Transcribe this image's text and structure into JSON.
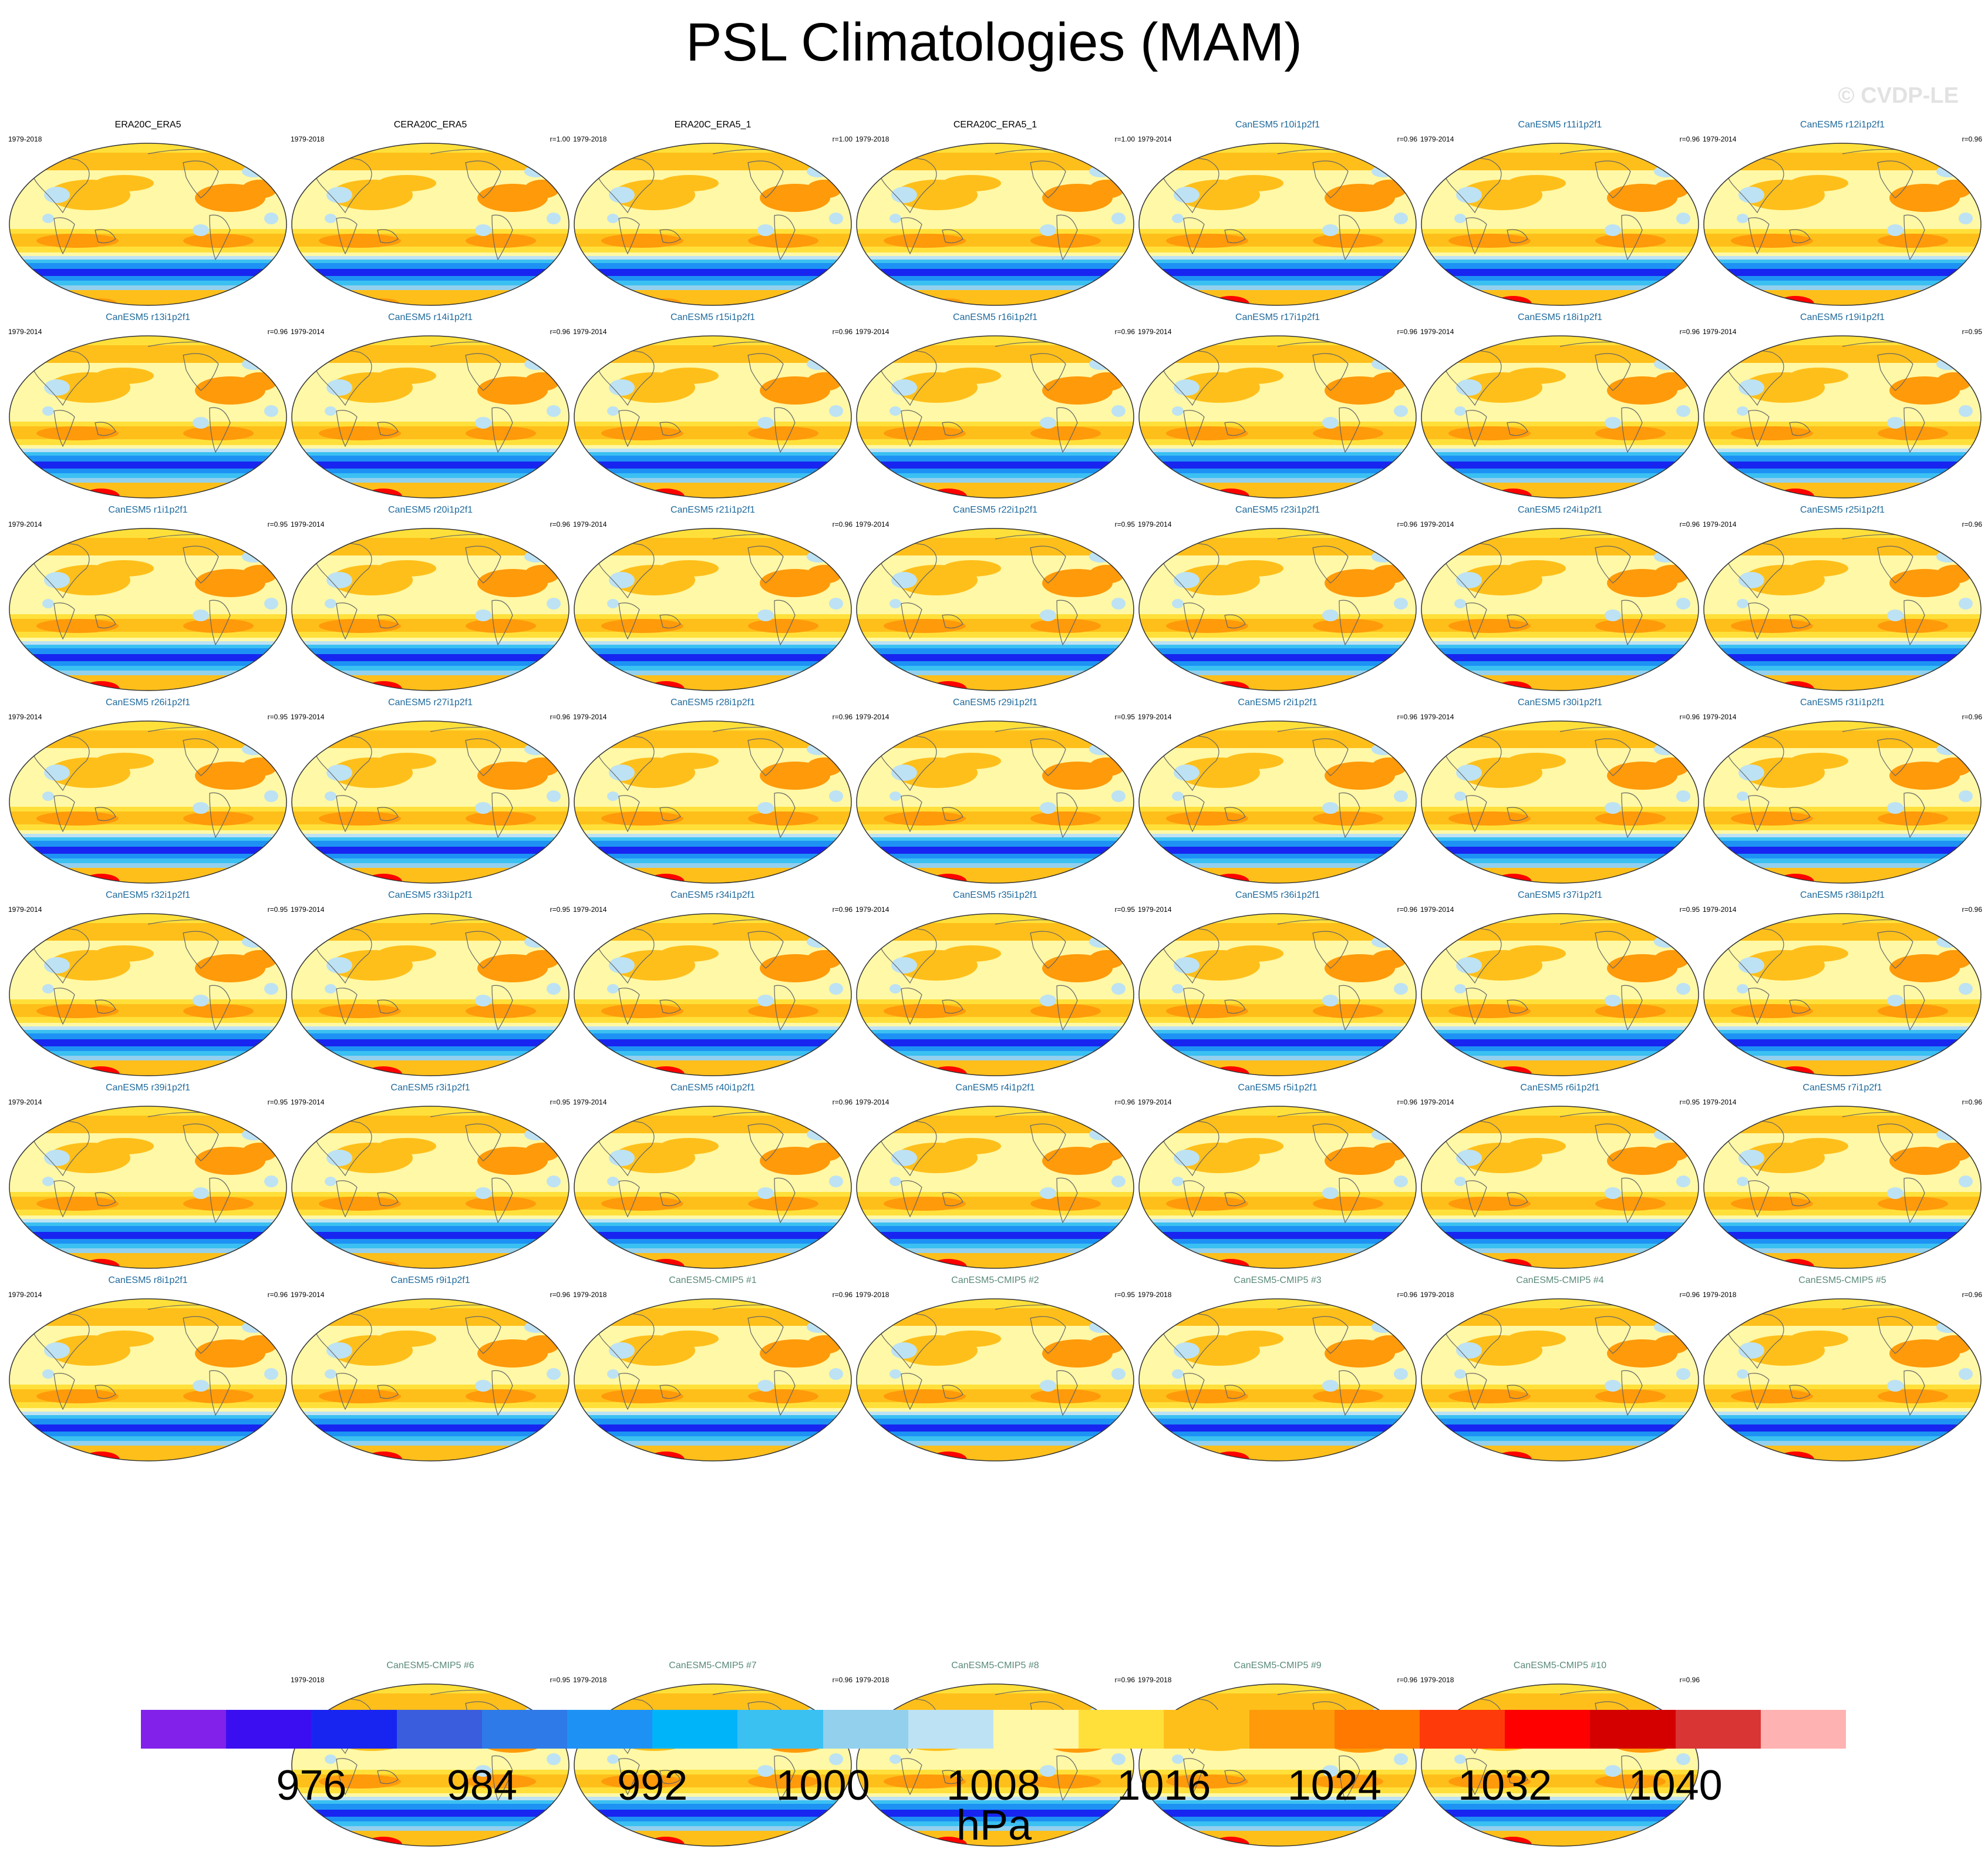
{
  "title": "PSL Climatologies (MAM)",
  "watermark": "© CVDP-LE",
  "colors": {
    "observation_title": "#000000",
    "ensemble_title": "#1f6a9c",
    "cmip5_title": "#5a8a7a"
  },
  "panels": [
    {
      "title": "ERA20C_ERA5",
      "dates": "1979-2018",
      "r": "",
      "kind": "obs"
    },
    {
      "title": "CERA20C_ERA5",
      "dates": "1979-2018",
      "r": "r=1.00",
      "kind": "obs"
    },
    {
      "title": "ERA20C_ERA5_1",
      "dates": "1979-2018",
      "r": "r=1.00",
      "kind": "obs"
    },
    {
      "title": "CERA20C_ERA5_1",
      "dates": "1979-2018",
      "r": "r=1.00",
      "kind": "obs"
    },
    {
      "title": "CanESM5 r10i1p2f1",
      "dates": "1979-2014",
      "r": "r=0.96",
      "kind": "ens"
    },
    {
      "title": "CanESM5 r11i1p2f1",
      "dates": "1979-2014",
      "r": "r=0.96",
      "kind": "ens"
    },
    {
      "title": "CanESM5 r12i1p2f1",
      "dates": "1979-2014",
      "r": "r=0.96",
      "kind": "ens"
    },
    {
      "title": "CanESM5 r13i1p2f1",
      "dates": "1979-2014",
      "r": "r=0.96",
      "kind": "ens"
    },
    {
      "title": "CanESM5 r14i1p2f1",
      "dates": "1979-2014",
      "r": "r=0.96",
      "kind": "ens"
    },
    {
      "title": "CanESM5 r15i1p2f1",
      "dates": "1979-2014",
      "r": "r=0.96",
      "kind": "ens"
    },
    {
      "title": "CanESM5 r16i1p2f1",
      "dates": "1979-2014",
      "r": "r=0.96",
      "kind": "ens"
    },
    {
      "title": "CanESM5 r17i1p2f1",
      "dates": "1979-2014",
      "r": "r=0.96",
      "kind": "ens"
    },
    {
      "title": "CanESM5 r18i1p2f1",
      "dates": "1979-2014",
      "r": "r=0.96",
      "kind": "ens"
    },
    {
      "title": "CanESM5 r19i1p2f1",
      "dates": "1979-2014",
      "r": "r=0.95",
      "kind": "ens"
    },
    {
      "title": "CanESM5 r1i1p2f1",
      "dates": "1979-2014",
      "r": "r=0.95",
      "kind": "ens"
    },
    {
      "title": "CanESM5 r20i1p2f1",
      "dates": "1979-2014",
      "r": "r=0.96",
      "kind": "ens"
    },
    {
      "title": "CanESM5 r21i1p2f1",
      "dates": "1979-2014",
      "r": "r=0.96",
      "kind": "ens"
    },
    {
      "title": "CanESM5 r22i1p2f1",
      "dates": "1979-2014",
      "r": "r=0.95",
      "kind": "ens"
    },
    {
      "title": "CanESM5 r23i1p2f1",
      "dates": "1979-2014",
      "r": "r=0.96",
      "kind": "ens"
    },
    {
      "title": "CanESM5 r24i1p2f1",
      "dates": "1979-2014",
      "r": "r=0.96",
      "kind": "ens"
    },
    {
      "title": "CanESM5 r25i1p2f1",
      "dates": "1979-2014",
      "r": "r=0.96",
      "kind": "ens"
    },
    {
      "title": "CanESM5 r26i1p2f1",
      "dates": "1979-2014",
      "r": "r=0.95",
      "kind": "ens"
    },
    {
      "title": "CanESM5 r27i1p2f1",
      "dates": "1979-2014",
      "r": "r=0.96",
      "kind": "ens"
    },
    {
      "title": "CanESM5 r28i1p2f1",
      "dates": "1979-2014",
      "r": "r=0.96",
      "kind": "ens"
    },
    {
      "title": "CanESM5 r29i1p2f1",
      "dates": "1979-2014",
      "r": "r=0.95",
      "kind": "ens"
    },
    {
      "title": "CanESM5 r2i1p2f1",
      "dates": "1979-2014",
      "r": "r=0.96",
      "kind": "ens"
    },
    {
      "title": "CanESM5 r30i1p2f1",
      "dates": "1979-2014",
      "r": "r=0.96",
      "kind": "ens"
    },
    {
      "title": "CanESM5 r31i1p2f1",
      "dates": "1979-2014",
      "r": "r=0.96",
      "kind": "ens"
    },
    {
      "title": "CanESM5 r32i1p2f1",
      "dates": "1979-2014",
      "r": "r=0.95",
      "kind": "ens"
    },
    {
      "title": "CanESM5 r33i1p2f1",
      "dates": "1979-2014",
      "r": "r=0.95",
      "kind": "ens"
    },
    {
      "title": "CanESM5 r34i1p2f1",
      "dates": "1979-2014",
      "r": "r=0.96",
      "kind": "ens"
    },
    {
      "title": "CanESM5 r35i1p2f1",
      "dates": "1979-2014",
      "r": "r=0.95",
      "kind": "ens"
    },
    {
      "title": "CanESM5 r36i1p2f1",
      "dates": "1979-2014",
      "r": "r=0.96",
      "kind": "ens"
    },
    {
      "title": "CanESM5 r37i1p2f1",
      "dates": "1979-2014",
      "r": "r=0.95",
      "kind": "ens"
    },
    {
      "title": "CanESM5 r38i1p2f1",
      "dates": "1979-2014",
      "r": "r=0.96",
      "kind": "ens"
    },
    {
      "title": "CanESM5 r39i1p2f1",
      "dates": "1979-2014",
      "r": "r=0.95",
      "kind": "ens"
    },
    {
      "title": "CanESM5 r3i1p2f1",
      "dates": "1979-2014",
      "r": "r=0.95",
      "kind": "ens"
    },
    {
      "title": "CanESM5 r40i1p2f1",
      "dates": "1979-2014",
      "r": "r=0.96",
      "kind": "ens"
    },
    {
      "title": "CanESM5 r4i1p2f1",
      "dates": "1979-2014",
      "r": "r=0.96",
      "kind": "ens"
    },
    {
      "title": "CanESM5 r5i1p2f1",
      "dates": "1979-2014",
      "r": "r=0.96",
      "kind": "ens"
    },
    {
      "title": "CanESM5 r6i1p2f1",
      "dates": "1979-2014",
      "r": "r=0.95",
      "kind": "ens"
    },
    {
      "title": "CanESM5 r7i1p2f1",
      "dates": "1979-2014",
      "r": "r=0.96",
      "kind": "ens"
    },
    {
      "title": "CanESM5 r8i1p2f1",
      "dates": "1979-2014",
      "r": "r=0.96",
      "kind": "ens"
    },
    {
      "title": "CanESM5 r9i1p2f1",
      "dates": "1979-2014",
      "r": "r=0.96",
      "kind": "ens"
    },
    {
      "title": "CanESM5-CMIP5 #1",
      "dates": "1979-2018",
      "r": "r=0.96",
      "kind": "cmip5"
    },
    {
      "title": "CanESM5-CMIP5 #2",
      "dates": "1979-2018",
      "r": "r=0.95",
      "kind": "cmip5"
    },
    {
      "title": "CanESM5-CMIP5 #3",
      "dates": "1979-2018",
      "r": "r=0.96",
      "kind": "cmip5"
    },
    {
      "title": "CanESM5-CMIP5 #4",
      "dates": "1979-2018",
      "r": "r=0.96",
      "kind": "cmip5"
    },
    {
      "title": "CanESM5-CMIP5 #5",
      "dates": "1979-2018",
      "r": "r=0.96",
      "kind": "cmip5"
    },
    {
      "title": "CanESM5-CMIP5 #6",
      "dates": "1979-2018",
      "r": "r=0.95",
      "kind": "cmip5"
    },
    {
      "title": "CanESM5-CMIP5 #7",
      "dates": "1979-2018",
      "r": "r=0.96",
      "kind": "cmip5"
    },
    {
      "title": "CanESM5-CMIP5 #8",
      "dates": "1979-2018",
      "r": "r=0.96",
      "kind": "cmip5"
    },
    {
      "title": "CanESM5-CMIP5 #9",
      "dates": "1979-2018",
      "r": "r=0.96",
      "kind": "cmip5"
    },
    {
      "title": "CanESM5-CMIP5 #10",
      "dates": "1979-2018",
      "r": "r=0.96",
      "kind": "cmip5"
    }
  ],
  "colorbar": {
    "colors": [
      "#8121ea",
      "#3a0ef0",
      "#1825f0",
      "#3a5ddd",
      "#2e7ae8",
      "#1d92f4",
      "#00b4fa",
      "#3bc0f2",
      "#92d0ee",
      "#bde2f4",
      "#fff8a6",
      "#ffe03a",
      "#ffbf1a",
      "#ff9a0a",
      "#ff7800",
      "#ff3a0a",
      "#ff0000",
      "#d40000",
      "#d93535",
      "#ffb2b2"
    ],
    "labels": [
      "976",
      "984",
      "992",
      "1000",
      "1008",
      "1016",
      "1024",
      "1032",
      "1040"
    ],
    "units": "hPa"
  }
}
